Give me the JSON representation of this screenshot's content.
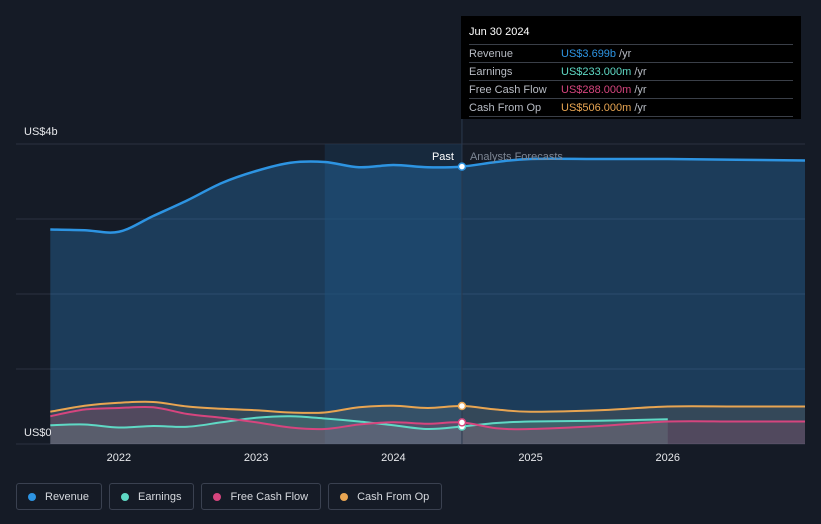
{
  "colors": {
    "revenue": "#2d94e2",
    "earnings": "#5fd9c5",
    "free_cash_flow": "#d6457e",
    "cash_from_op": "#e8a552",
    "grid": "#2a3140",
    "background": "#151b26"
  },
  "divider": {
    "past_label": "Past",
    "forecast_label": "Analysts Forecasts",
    "date": "2024.5"
  },
  "tooltip": {
    "date": "Jun 30 2024",
    "rows": [
      {
        "label": "Revenue",
        "value": "US$3.699b",
        "unit": "/yr",
        "color": "#2d94e2"
      },
      {
        "label": "Earnings",
        "value": "US$233.000m",
        "unit": "/yr",
        "color": "#5fd9c5"
      },
      {
        "label": "Free Cash Flow",
        "value": "US$288.000m",
        "unit": "/yr",
        "color": "#d6457e"
      },
      {
        "label": "Cash From Op",
        "value": "US$506.000m",
        "unit": "/yr",
        "color": "#e8a552"
      }
    ]
  },
  "legend": [
    {
      "label": "Revenue",
      "color": "#2d94e2"
    },
    {
      "label": "Earnings",
      "color": "#5fd9c5"
    },
    {
      "label": "Free Cash Flow",
      "color": "#d6457e"
    },
    {
      "label": "Cash From Op",
      "color": "#e8a552"
    }
  ],
  "chart_data": {
    "type": "line",
    "ylim": [
      0,
      4000
    ],
    "y_unit": "US$ millions",
    "y_tick_labels": [
      {
        "value": 4000,
        "label": "US$4b"
      },
      {
        "value": 0,
        "label": "US$0"
      }
    ],
    "y_gridlines": [
      0,
      1000,
      2000,
      3000,
      4000
    ],
    "x_range": [
      2021.25,
      2027.0
    ],
    "x_ticks": [
      {
        "value": 2022,
        "label": "2022"
      },
      {
        "value": 2023,
        "label": "2023"
      },
      {
        "value": 2024,
        "label": "2024"
      },
      {
        "value": 2025,
        "label": "2025"
      },
      {
        "value": 2026,
        "label": "2026"
      }
    ],
    "highlight_range": [
      2023.5,
      2024.5
    ],
    "series": [
      {
        "name": "Revenue",
        "key": "revenue",
        "x": [
          2021.5,
          2021.75,
          2022.0,
          2022.25,
          2022.5,
          2022.75,
          2023.0,
          2023.25,
          2023.5,
          2023.75,
          2024.0,
          2024.25,
          2024.5,
          2024.75,
          2025.0,
          2025.5,
          2026.0,
          2026.5,
          2027.0
        ],
        "y": [
          2860,
          2850,
          2830,
          3040,
          3250,
          3480,
          3640,
          3750,
          3760,
          3690,
          3720,
          3690,
          3699,
          3760,
          3800,
          3800,
          3800,
          3790,
          3780
        ]
      },
      {
        "name": "Earnings",
        "key": "earnings",
        "x": [
          2021.5,
          2021.75,
          2022.0,
          2022.25,
          2022.5,
          2022.75,
          2023.0,
          2023.25,
          2023.5,
          2023.75,
          2024.0,
          2024.25,
          2024.5,
          2024.75,
          2025.0,
          2025.5,
          2026.0
        ],
        "y": [
          250,
          260,
          220,
          240,
          230,
          290,
          350,
          370,
          340,
          300,
          250,
          200,
          233,
          280,
          300,
          310,
          330
        ]
      },
      {
        "name": "Free Cash Flow",
        "key": "free_cash_flow",
        "x": [
          2021.5,
          2021.75,
          2022.0,
          2022.25,
          2022.5,
          2022.75,
          2023.0,
          2023.25,
          2023.5,
          2023.75,
          2024.0,
          2024.25,
          2024.5,
          2024.75,
          2025.0,
          2025.5,
          2026.0,
          2026.5,
          2027.0
        ],
        "y": [
          370,
          460,
          480,
          490,
          400,
          350,
          290,
          220,
          200,
          260,
          290,
          270,
          288,
          210,
          200,
          240,
          300,
          300,
          300
        ]
      },
      {
        "name": "Cash From Op",
        "key": "cash_from_op",
        "x": [
          2021.5,
          2021.75,
          2022.0,
          2022.25,
          2022.5,
          2022.75,
          2023.0,
          2023.25,
          2023.5,
          2023.75,
          2024.0,
          2024.25,
          2024.5,
          2024.75,
          2025.0,
          2025.5,
          2026.0,
          2026.5,
          2027.0
        ],
        "y": [
          430,
          510,
          550,
          560,
          500,
          470,
          450,
          420,
          420,
          490,
          510,
          480,
          506,
          460,
          430,
          450,
          500,
          500,
          500
        ]
      }
    ]
  }
}
